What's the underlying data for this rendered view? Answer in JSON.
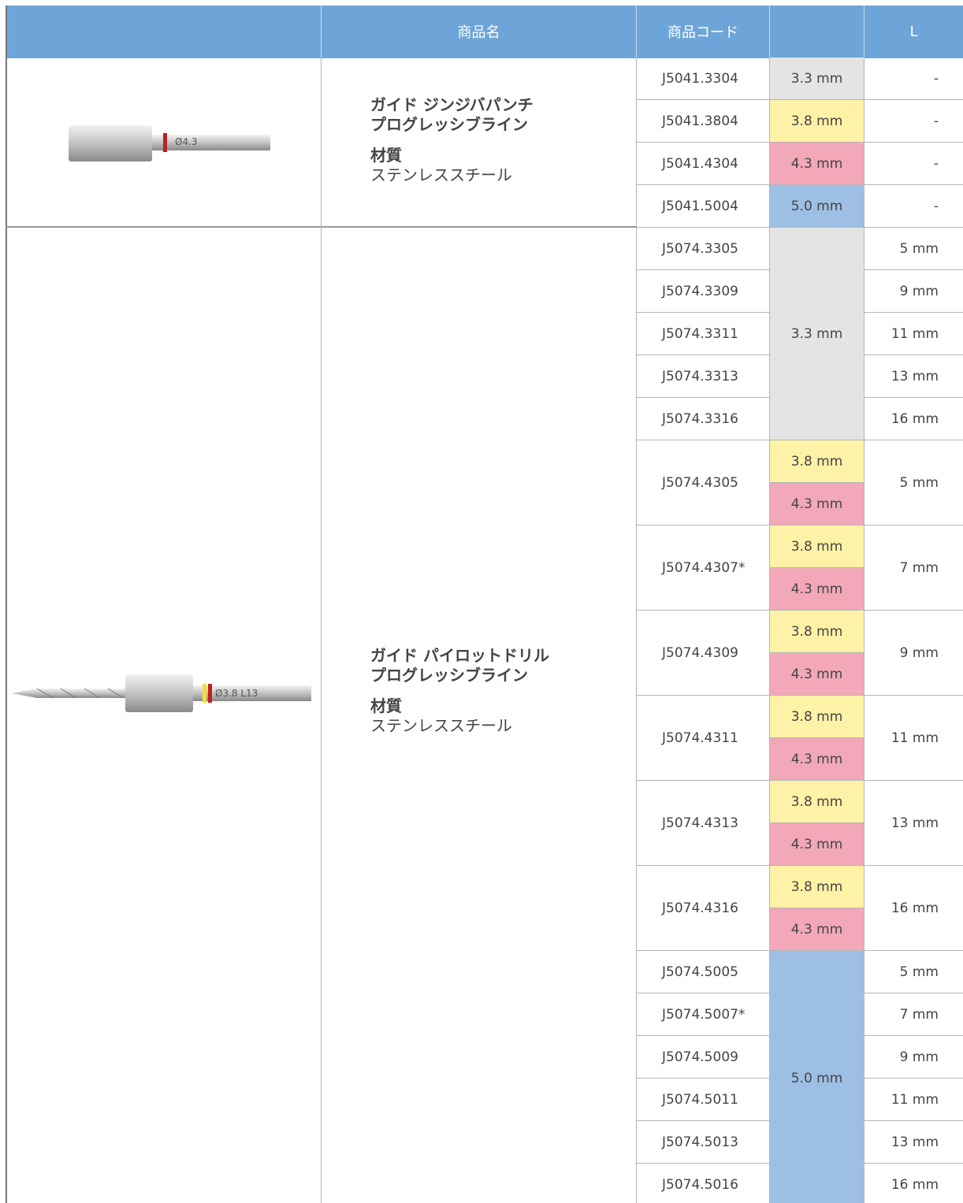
{
  "header": {
    "product_name": "商品名",
    "code": "商品コード",
    "length": "L"
  },
  "groups": [
    {
      "image_label": "Ø4.3",
      "name": [
        "ガイド ジンジバパンチ",
        "プログレッシブライン"
      ],
      "material_label": "材質",
      "material": "ステンレススチール",
      "blocks": [
        {
          "items": [
            {
              "code": "J5041.3304",
              "diameters": [
                {
                  "text": "3.3 mm",
                  "color": "#e4e4e4"
                }
              ],
              "length": "-"
            },
            {
              "code": "J5041.3804",
              "diameters": [
                {
                  "text": "3.8 mm",
                  "color": "#fdf2a6"
                }
              ],
              "length": "-"
            },
            {
              "code": "J5041.4304",
              "diameters": [
                {
                  "text": "4.3 mm",
                  "color": "#f2a8b9"
                }
              ],
              "length": "-"
            },
            {
              "code": "J5041.5004",
              "diameters": [
                {
                  "text": "5.0 mm",
                  "color": "#9ebfe4"
                }
              ],
              "length": "-"
            }
          ]
        }
      ]
    },
    {
      "image_label": "Ø3.8 L13",
      "name": [
        "ガイド パイロットドリル",
        "プログレッシブライン"
      ],
      "material_label": "材質",
      "material": "ステンレススチール",
      "blocks": [
        {
          "diameter": {
            "text": "3.3 mm",
            "color": "#e4e4e4"
          },
          "items": [
            {
              "code": "J5074.3305",
              "length": "5 mm"
            },
            {
              "code": "J5074.3309",
              "length": "9 mm"
            },
            {
              "code": "J5074.3311",
              "length": "11 mm"
            },
            {
              "code": "J5074.3313",
              "length": "13 mm"
            },
            {
              "code": "J5074.3316",
              "length": "16 mm"
            }
          ]
        },
        {
          "items": [
            {
              "code": "J5074.4305",
              "diameters": [
                {
                  "text": "3.8 mm",
                  "color": "#fdf2a6"
                },
                {
                  "text": "4.3 mm",
                  "color": "#f2a8b9"
                }
              ],
              "length": "5 mm"
            },
            {
              "code": "J5074.4307*",
              "diameters": [
                {
                  "text": "3.8 mm",
                  "color": "#fdf2a6"
                },
                {
                  "text": "4.3 mm",
                  "color": "#f2a8b9"
                }
              ],
              "length": "7 mm"
            },
            {
              "code": "J5074.4309",
              "diameters": [
                {
                  "text": "3.8 mm",
                  "color": "#fdf2a6"
                },
                {
                  "text": "4.3 mm",
                  "color": "#f2a8b9"
                }
              ],
              "length": "9 mm"
            },
            {
              "code": "J5074.4311",
              "diameters": [
                {
                  "text": "3.8 mm",
                  "color": "#fdf2a6"
                },
                {
                  "text": "4.3 mm",
                  "color": "#f2a8b9"
                }
              ],
              "length": "11 mm"
            },
            {
              "code": "J5074.4313",
              "diameters": [
                {
                  "text": "3.8 mm",
                  "color": "#fdf2a6"
                },
                {
                  "text": "4.3 mm",
                  "color": "#f2a8b9"
                }
              ],
              "length": "13 mm"
            },
            {
              "code": "J5074.4316",
              "diameters": [
                {
                  "text": "3.8 mm",
                  "color": "#fdf2a6"
                },
                {
                  "text": "4.3 mm",
                  "color": "#f2a8b9"
                }
              ],
              "length": "16 mm"
            }
          ]
        },
        {
          "diameter": {
            "text": "5.0 mm",
            "color": "#9ebfe4"
          },
          "items": [
            {
              "code": "J5074.5005",
              "length": "5 mm"
            },
            {
              "code": "J5074.5007*",
              "length": "7 mm"
            },
            {
              "code": "J5074.5009",
              "length": "9 mm"
            },
            {
              "code": "J5074.5011",
              "length": "11 mm"
            },
            {
              "code": "J5074.5013",
              "length": "13 mm"
            },
            {
              "code": "J5074.5016",
              "length": "16 mm"
            }
          ]
        }
      ]
    }
  ]
}
